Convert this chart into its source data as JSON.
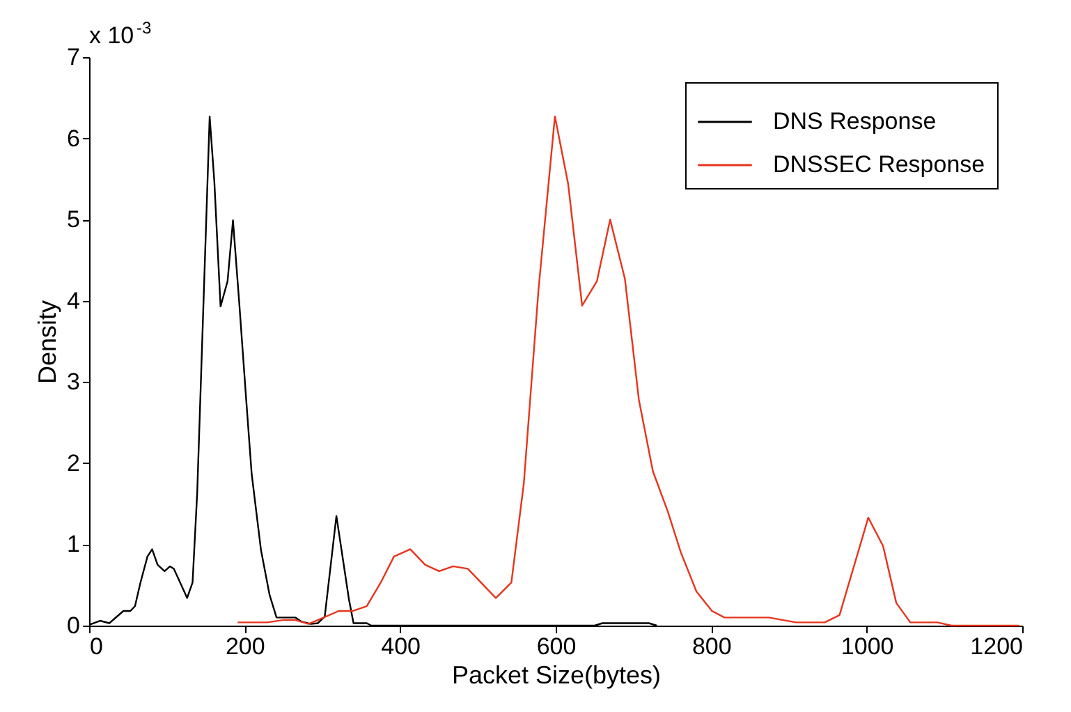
{
  "chart_data": {
    "type": "line",
    "xlabel": "Packet Size(bytes)",
    "ylabel": "Density",
    "annotations": [
      "x 10$^{-3}$"
    ],
    "xlim": [
      0,
      1200
    ],
    "xticks": [
      0,
      200,
      400,
      600,
      800,
      1000,
      1200
    ],
    "ylim": [
      0,
      7
    ],
    "yticks": [
      0,
      1,
      2,
      3,
      4,
      5,
      6,
      7
    ],
    "grid": false,
    "legend": "top right",
    "line_style": "solid",
    "marker": "none",
    "series": [
      {
        "name": "DNS Response",
        "color": "#000000",
        "x": [
          0,
          14,
          26,
          44,
          53,
          59,
          66,
          75,
          81,
          88,
          97,
          104,
          109,
          126,
          133,
          139,
          155,
          161,
          169,
          178,
          185,
          193,
          202,
          209,
          221,
          232,
          241,
          265,
          273,
          285,
          294,
          303,
          318,
          334,
          340,
          357,
          363,
          650,
          660,
          720,
          730
        ],
        "values": [
          0.01,
          0.06,
          0.03,
          0.18,
          0.18,
          0.24,
          0.53,
          0.85,
          0.94,
          0.75,
          0.67,
          0.73,
          0.7,
          0.34,
          0.53,
          1.64,
          6.27,
          5.47,
          3.93,
          4.24,
          4.99,
          3.98,
          2.78,
          1.87,
          0.93,
          0.38,
          0.1,
          0.1,
          0.05,
          0.02,
          0.03,
          0.11,
          1.35,
          0.33,
          0.03,
          0.03,
          0,
          0,
          0.03,
          0.03,
          0
        ]
      },
      {
        "name": "DNSSEC Response",
        "color": "#e8341c",
        "x": [
          191,
          229,
          250,
          265,
          282,
          297,
          321,
          339,
          357,
          375,
          392,
          413,
          432,
          450,
          468,
          487,
          523,
          543,
          559,
          578,
          599,
          616,
          634,
          653,
          670,
          689,
          707,
          725,
          744,
          761,
          781,
          801,
          817,
          874,
          909,
          946,
          965,
          1002,
          1021,
          1038,
          1056,
          1091,
          1109,
          1196
        ],
        "values": [
          0.04,
          0.04,
          0.07,
          0.07,
          0.02,
          0.08,
          0.18,
          0.18,
          0.24,
          0.53,
          0.85,
          0.94,
          0.75,
          0.67,
          0.73,
          0.7,
          0.34,
          0.53,
          1.75,
          4.15,
          6.27,
          5.44,
          3.94,
          4.24,
          5.0,
          4.27,
          2.78,
          1.9,
          1.41,
          0.9,
          0.42,
          0.18,
          0.1,
          0.1,
          0.04,
          0.04,
          0.13,
          1.33,
          0.98,
          0.28,
          0.04,
          0.04,
          0,
          0
        ]
      }
    ]
  }
}
